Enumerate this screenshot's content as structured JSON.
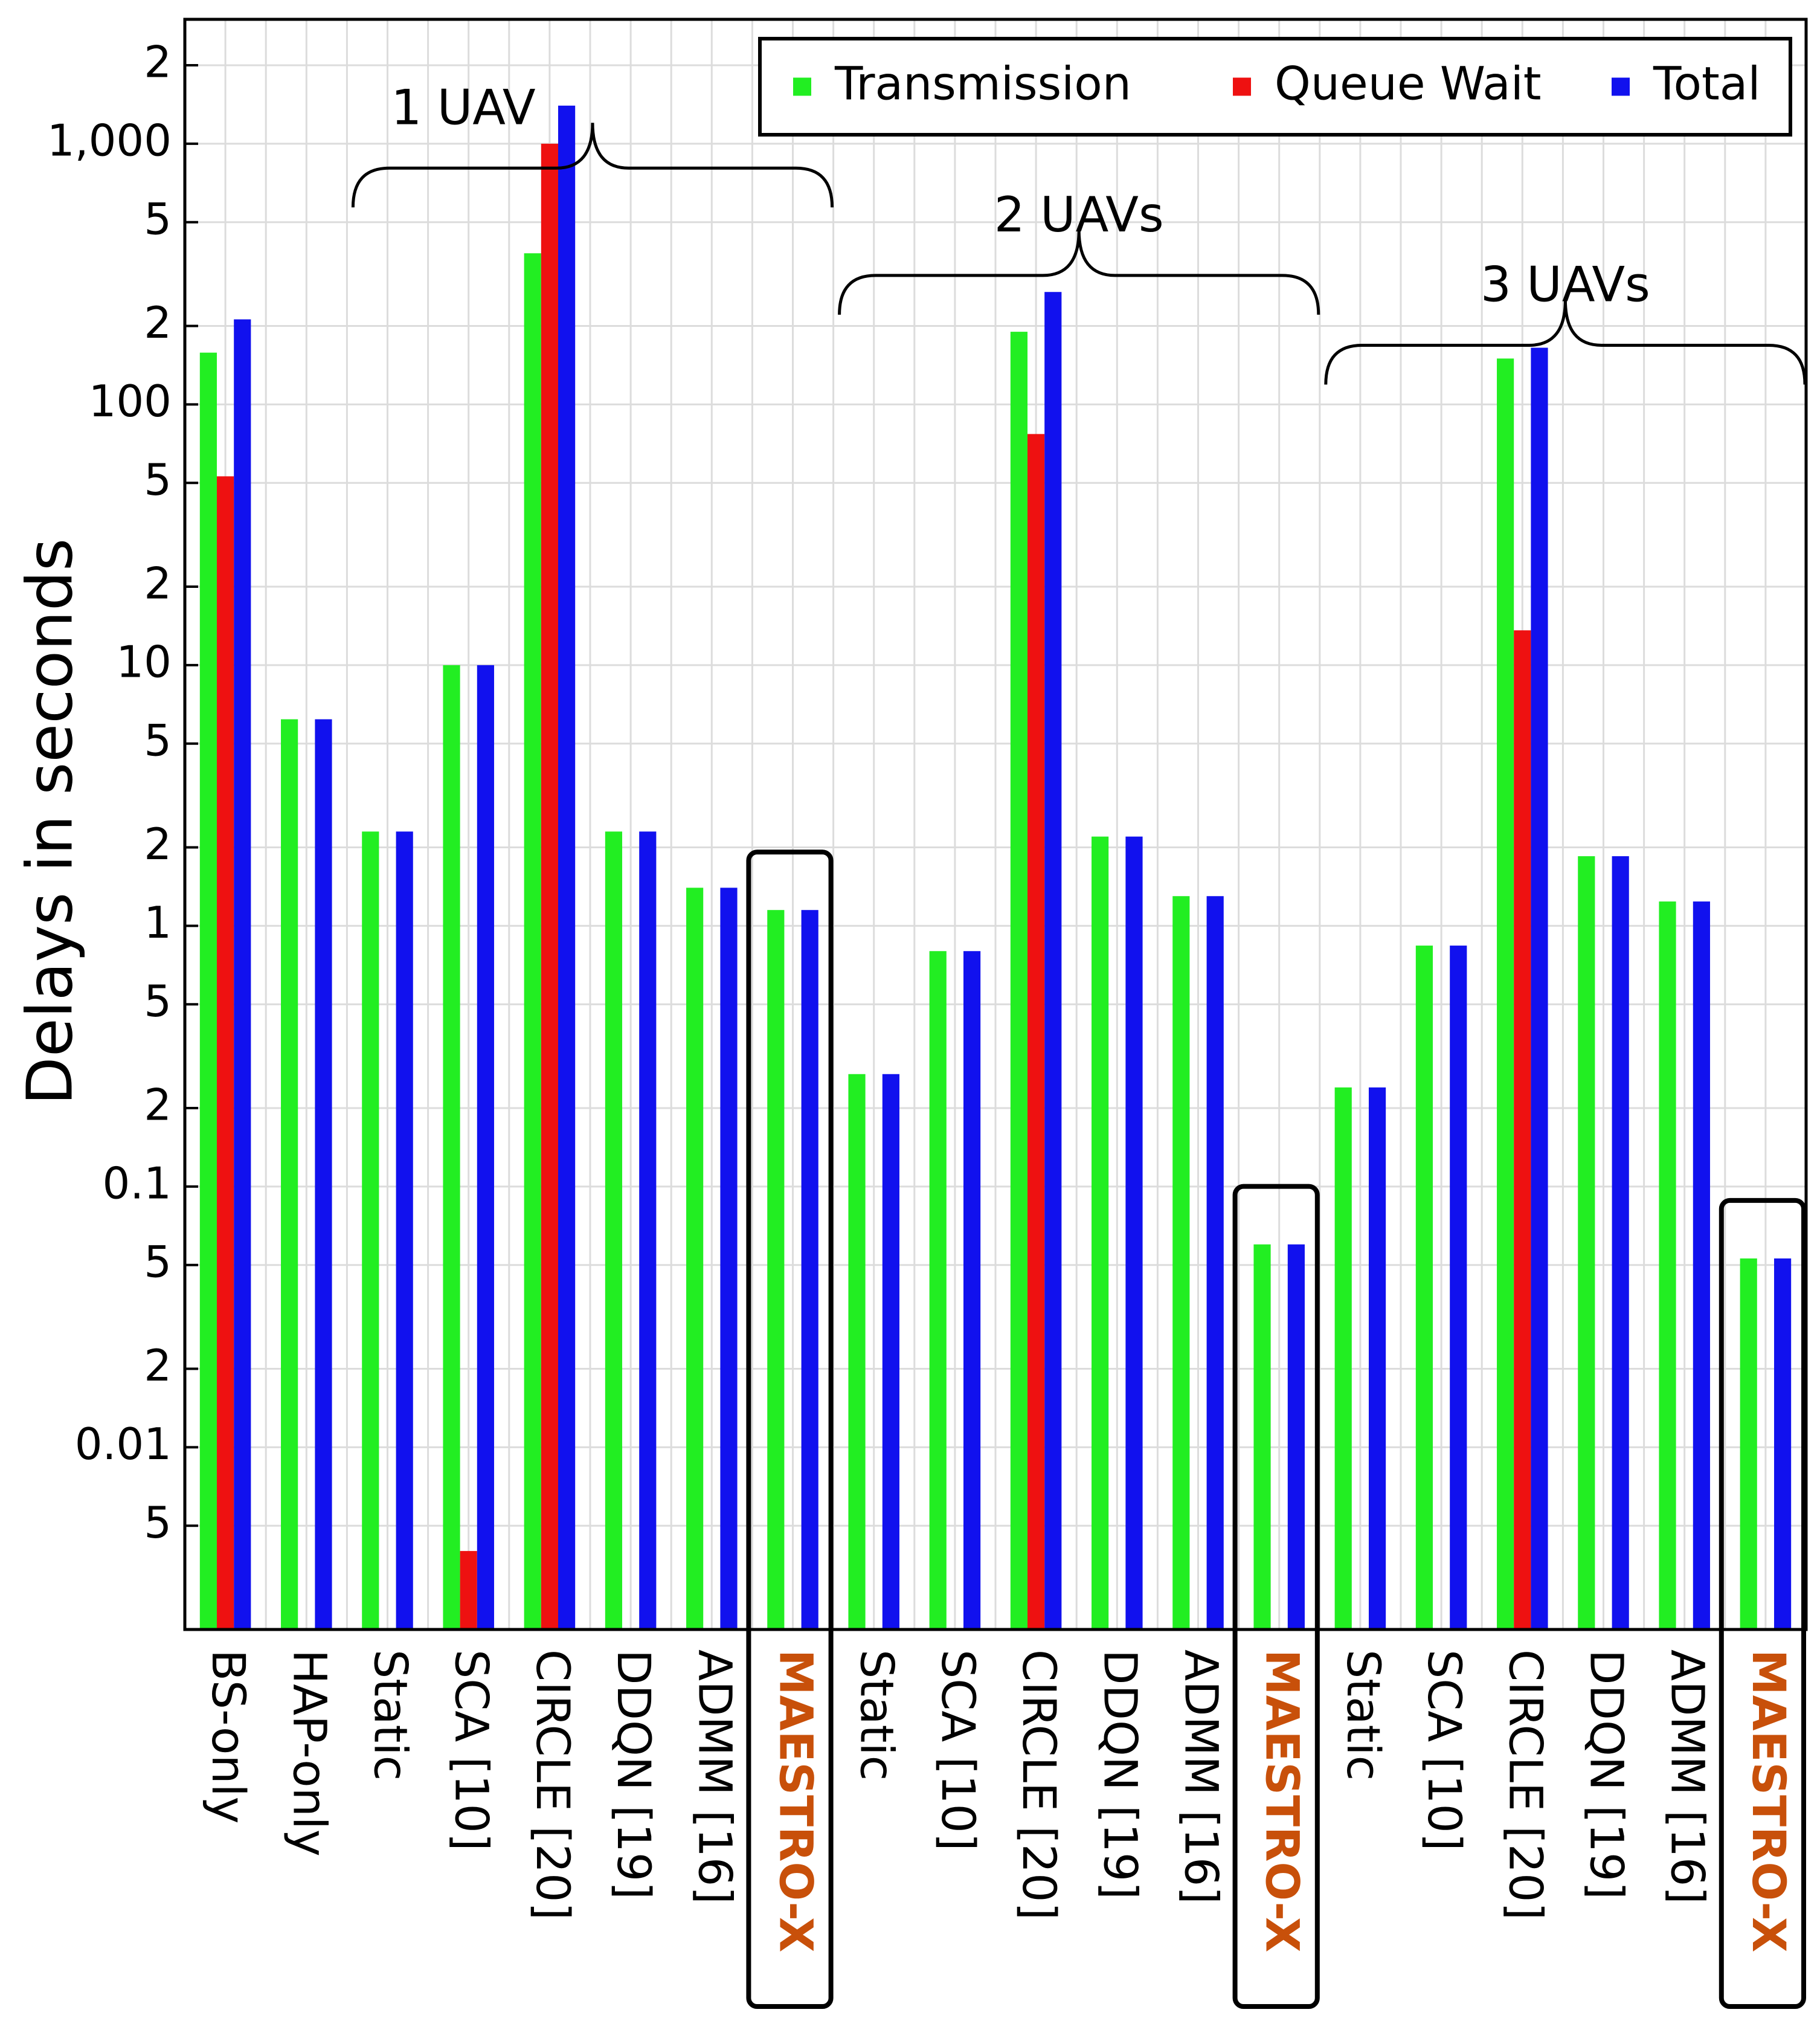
{
  "chart_data": {
    "type": "bar",
    "y_label": "Delays in seconds",
    "categories": [
      "BS-only",
      "HAP-only",
      "Static",
      "SCA [10]",
      "CIRCLE [20]",
      "DDQN [19]",
      "ADMM [16]",
      "MAESTRO-X",
      "Static",
      "SCA [10]",
      "CIRCLE [20]",
      "DDQN [19]",
      "ADMM [16]",
      "MAESTRO-X",
      "Static",
      "SCA [10]",
      "CIRCLE [20]",
      "DDQN [19]",
      "ADMM [16]",
      "MAESTRO-X"
    ],
    "series": [
      {
        "name": "Transmission",
        "color": "#22ee22",
        "values": [
          158,
          6.2,
          2.3,
          10,
          380,
          2.3,
          1.4,
          1.15,
          0.27,
          0.8,
          190,
          2.2,
          1.3,
          0.06,
          0.24,
          0.84,
          150,
          1.85,
          1.24,
          0.053
        ]
      },
      {
        "name": "Queue Wait",
        "color": "#ee1111",
        "values": [
          53,
          null,
          null,
          0.004,
          1000,
          null,
          null,
          null,
          null,
          null,
          77,
          null,
          null,
          null,
          null,
          null,
          13.6,
          null,
          null,
          null
        ]
      },
      {
        "name": "Total",
        "color": "#1111ee",
        "values": [
          212,
          6.2,
          2.3,
          10,
          1400,
          2.3,
          1.4,
          1.15,
          0.27,
          0.8,
          270,
          2.2,
          1.3,
          0.06,
          0.24,
          0.84,
          165,
          1.85,
          1.24,
          0.053
        ]
      }
    ],
    "annotations": [
      "1 UAV",
      "2 UAVs",
      "3 UAVs"
    ],
    "ylim": [
      0.002,
      3000
    ],
    "log_scale": true,
    "yticks": [
      {
        "value": 2000,
        "label": "2"
      },
      {
        "value": 1000,
        "label": "1,000"
      },
      {
        "value": 500,
        "label": "5"
      },
      {
        "value": 200,
        "label": "2"
      },
      100,
      {
        "value": 50,
        "label": "5"
      },
      {
        "value": 20,
        "label": "2"
      },
      10,
      {
        "value": 5,
        "label": "5"
      },
      {
        "value": 2,
        "label": "2"
      },
      1,
      {
        "value": 0.5,
        "label": "5"
      },
      {
        "value": 0.2,
        "label": "2"
      },
      0.1,
      {
        "value": 0.05,
        "label": "5"
      },
      {
        "value": 0.02,
        "label": "2"
      },
      0.01,
      {
        "value": 0.005,
        "label": "5"
      }
    ],
    "grid": true,
    "legend": "top-right",
    "highlight_color": "#c8500a"
  }
}
